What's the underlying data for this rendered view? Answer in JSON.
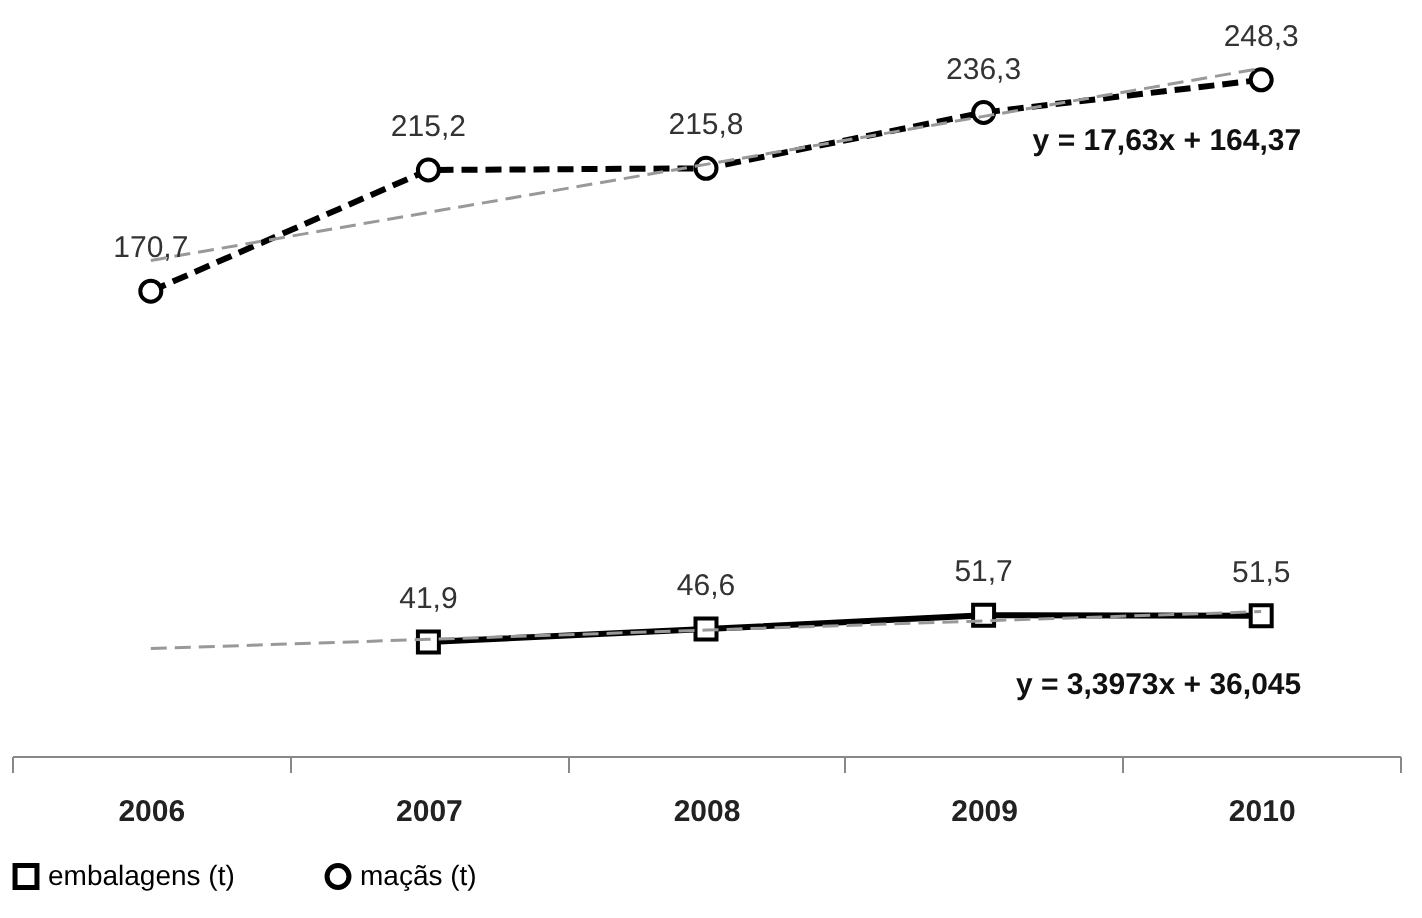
{
  "chart_data": {
    "type": "line",
    "categories": [
      "2006",
      "2007",
      "2008",
      "2009",
      "2010"
    ],
    "series": [
      {
        "name": "embalagens (t)",
        "color": "#000000",
        "values": [
          null,
          41.9,
          46.6,
          51.7,
          51.5
        ],
        "value_labels": [
          null,
          "41,9",
          "46,6",
          "51,7",
          "51,5"
        ],
        "marker": "square",
        "line_style": "solid"
      },
      {
        "name": "maçãs (t)",
        "color": "#000000",
        "values": [
          170.7,
          215.2,
          215.8,
          236.3,
          248.3
        ],
        "value_labels": [
          "170,7",
          "215,2",
          "215,8",
          "236,3",
          "248,3"
        ],
        "marker": "circle",
        "line_style": "dashed"
      },
      {
        "type": "line",
        "color": "#999999",
        "values": [
          182.0,
          199.63,
          217.26,
          234.89,
          252.52
        ],
        "line_style": "dashed"
      },
      {
        "type": "line",
        "color": "#999999",
        "values": [
          39.44,
          42.84,
          46.24,
          49.63,
          53.03
        ],
        "line_style": "dashed"
      }
    ],
    "tick_labels": "x",
    "legend": "bottom",
    "annotations": [
      "y = 17,63x + 164,37",
      "y = 3,3973x + 36,045"
    ]
  }
}
